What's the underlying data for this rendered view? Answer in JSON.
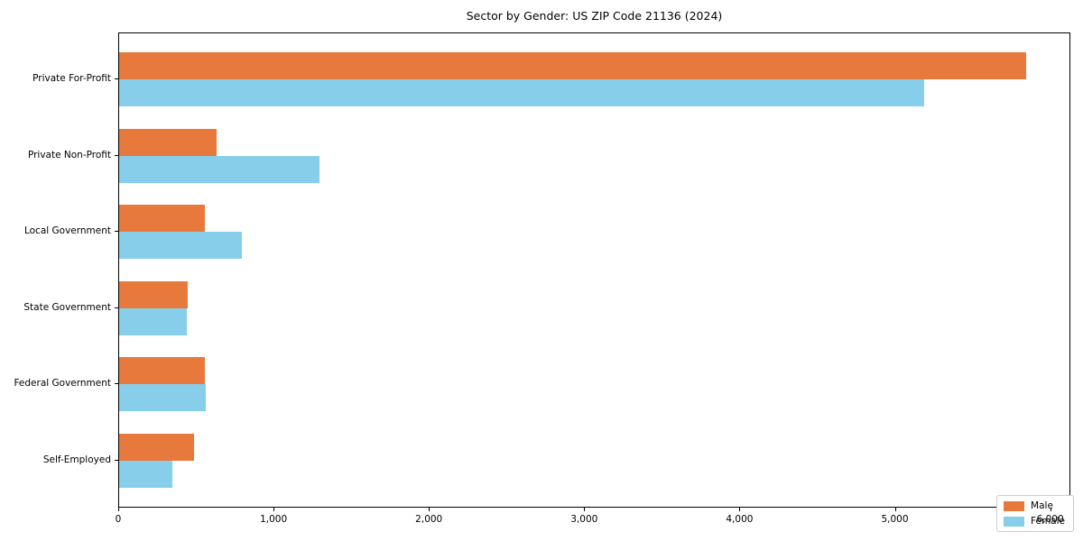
{
  "chart_data": {
    "type": "bar",
    "orientation": "horizontal",
    "title": "Sector by Gender: US ZIP Code 21136 (2024)",
    "categories": [
      "Private For-Profit",
      "Private Non-Profit",
      "Local Government",
      "State Government",
      "Federal Government",
      "Self-Employed"
    ],
    "series": [
      {
        "name": "Male",
        "color": "#E8793D",
        "values": [
          5840,
          630,
          550,
          440,
          550,
          480
        ]
      },
      {
        "name": "Female",
        "color": "#87CEEB",
        "values": [
          5180,
          1290,
          790,
          435,
          560,
          340
        ]
      }
    ],
    "xlabel": "",
    "ylabel": "",
    "xlim": [
      0,
      6130
    ],
    "x_ticks": [
      0,
      1000,
      2000,
      3000,
      4000,
      5000,
      6000
    ],
    "x_tick_labels": [
      "0",
      "1,000",
      "2,000",
      "3,000",
      "4,000",
      "5,000",
      "6,000"
    ],
    "grid": false,
    "legend_position": "lower right"
  }
}
